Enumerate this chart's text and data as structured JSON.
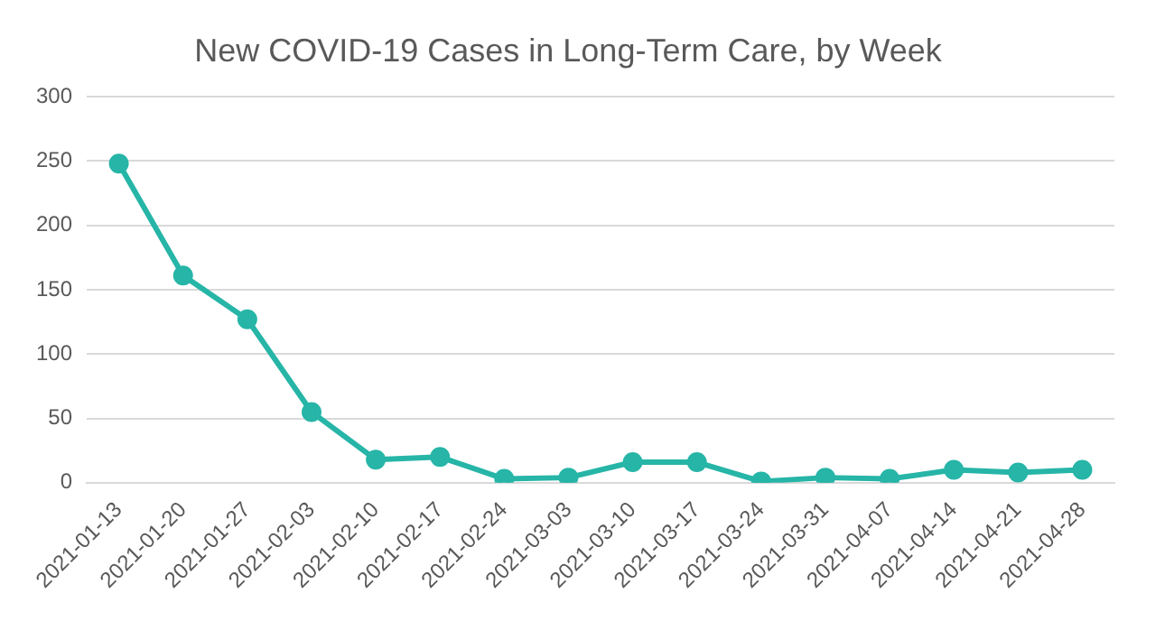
{
  "chart_data": {
    "type": "line",
    "title": "New COVID-19 Cases in Long-Term Care, by Week",
    "categories": [
      "2021-01-13",
      "2021-01-20",
      "2021-01-27",
      "2021-02-03",
      "2021-02-10",
      "2021-02-17",
      "2021-02-24",
      "2021-03-03",
      "2021-03-10",
      "2021-03-17",
      "2021-03-24",
      "2021-03-31",
      "2021-04-07",
      "2021-04-14",
      "2021-04-21",
      "2021-04-28"
    ],
    "series": [
      {
        "color": "#26b5a7",
        "values": [
          248,
          161,
          127,
          55,
          18,
          20,
          3,
          4,
          16,
          16,
          1,
          4,
          3,
          10,
          8,
          10
        ]
      }
    ],
    "ylim": [
      0,
      300
    ],
    "yticks": [
      0,
      50,
      100,
      150,
      200,
      250,
      300
    ],
    "grid": "y",
    "legend": false,
    "marker": "circle",
    "line_style": "solid"
  }
}
